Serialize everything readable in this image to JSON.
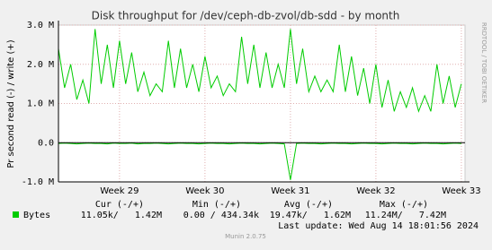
{
  "chart_data": {
    "type": "line",
    "title": "Disk throughput for /dev/ceph-db-zvol/db-sdd - by month",
    "y_label": "Pr second read (-) / write (+)",
    "side_note": "RRDTOOL / TOBI OETIKER",
    "footer": "Munin 2.0.75",
    "last_update": "Last update: Wed Aug 14 18:01:56 2024",
    "grid": true,
    "ylim": [
      -1.0,
      3.0
    ],
    "yticks": [
      {
        "value": -1,
        "label": "-1.0 M"
      },
      {
        "value": 0,
        "label": "0.0"
      },
      {
        "value": 1,
        "label": "1.0 M"
      },
      {
        "value": 2,
        "label": "2.0 M"
      },
      {
        "value": 3,
        "label": "3.0 M"
      }
    ],
    "xlim": [
      0,
      33.3
    ],
    "xticks": [
      {
        "value": 5,
        "label": "Week 29"
      },
      {
        "value": 12,
        "label": "Week 30"
      },
      {
        "value": 19,
        "label": "Week 31"
      },
      {
        "value": 26,
        "label": "Week 32"
      },
      {
        "value": 33,
        "label": "Week 33"
      }
    ],
    "x": [
      0,
      0.5,
      1,
      1.5,
      2,
      2.5,
      3,
      3.5,
      4,
      4.5,
      5,
      5.5,
      6,
      6.5,
      7,
      7.5,
      8,
      8.5,
      9,
      9.5,
      10,
      10.5,
      11,
      11.5,
      12,
      12.5,
      13,
      13.5,
      14,
      14.5,
      15,
      15.5,
      16,
      16.5,
      17,
      17.5,
      18,
      18.5,
      19,
      19.5,
      20,
      20.5,
      21,
      21.5,
      22,
      22.5,
      23,
      23.5,
      24,
      24.5,
      25,
      25.5,
      26,
      26.5,
      27,
      27.5,
      28,
      28.5,
      29,
      29.5,
      30,
      30.5,
      31,
      31.5,
      32,
      32.5,
      33
    ],
    "series": [
      {
        "name": "Bytes",
        "color": "#00cc00",
        "values": [
          2.4,
          1.4,
          2.0,
          1.1,
          1.6,
          1.0,
          2.9,
          1.5,
          2.5,
          1.4,
          2.6,
          1.5,
          2.3,
          1.3,
          1.8,
          1.2,
          1.5,
          1.3,
          2.6,
          1.4,
          2.4,
          1.4,
          2.0,
          1.3,
          2.2,
          1.4,
          1.7,
          1.2,
          1.5,
          1.3,
          2.7,
          1.5,
          2.5,
          1.4,
          2.3,
          1.4,
          2.0,
          1.4,
          2.9,
          1.5,
          2.4,
          1.3,
          1.7,
          1.3,
          1.6,
          1.3,
          2.5,
          1.3,
          2.2,
          1.2,
          1.9,
          1.0,
          2.0,
          0.9,
          1.6,
          0.8,
          1.3,
          0.9,
          1.4,
          0.8,
          1.2,
          0.8,
          2.0,
          1.0,
          1.7,
          0.9,
          1.5
        ],
        "read_values": [
          -0.02,
          -0.01,
          -0.02,
          -0.03,
          -0.02,
          -0.01,
          -0.02,
          -0.02,
          -0.03,
          -0.01,
          -0.02,
          -0.02,
          -0.01,
          -0.03,
          -0.02,
          -0.02,
          -0.01,
          -0.02,
          -0.03,
          -0.02,
          -0.01,
          -0.02,
          -0.02,
          -0.03,
          -0.02,
          -0.01,
          -0.02,
          -0.02,
          -0.03,
          -0.02,
          -0.01,
          -0.02,
          -0.02,
          -0.03,
          -0.02,
          -0.01,
          -0.02,
          -0.03,
          -0.95,
          -0.02,
          -0.01,
          -0.02,
          -0.02,
          -0.03,
          -0.02,
          -0.01,
          -0.02,
          -0.02,
          -0.03,
          -0.02,
          -0.01,
          -0.02,
          -0.02,
          -0.03,
          -0.02,
          -0.01,
          -0.02,
          -0.02,
          -0.03,
          -0.02,
          -0.01,
          -0.02,
          -0.02,
          -0.03,
          -0.02,
          -0.01,
          -0.02
        ]
      }
    ],
    "legend_table": {
      "headers": [
        "Cur (-/+)",
        "Min (-/+)",
        "Avg (-/+)",
        "Max (-/+)"
      ],
      "row": [
        "11.05k/   1.42M",
        "0.00 / 434.34k",
        "19.47k/   1.62M",
        "11.24M/   7.42M"
      ]
    }
  }
}
